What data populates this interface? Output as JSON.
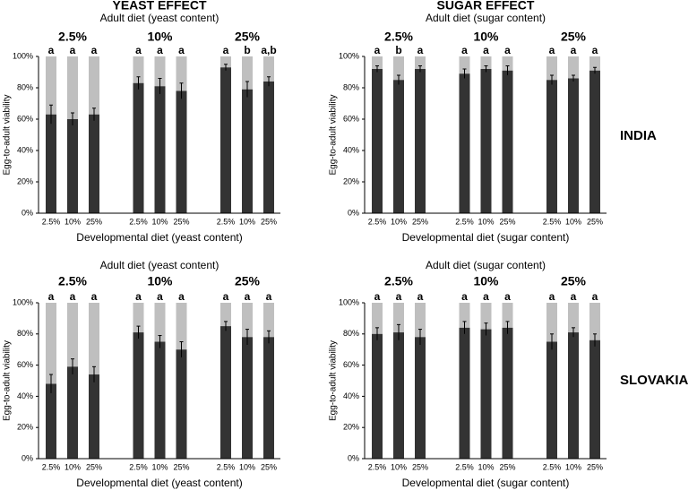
{
  "column_titles": [
    "YEAST EFFECT",
    "SUGAR EFFECT"
  ],
  "row_labels": [
    "INDIA",
    "SLOVAKIA"
  ],
  "chart_data": [
    {
      "type": "bar",
      "subtitle": "Adult diet (yeast content)",
      "groups": [
        "2.5%",
        "10%",
        "25%"
      ],
      "categories": [
        "2.5%",
        "10%",
        "25%",
        "2.5%",
        "10%",
        "25%",
        "2.5%",
        "10%",
        "25%"
      ],
      "values": [
        63,
        60,
        63,
        83,
        81,
        78,
        93,
        79,
        84
      ],
      "errors": [
        6,
        4,
        4,
        4,
        5,
        5,
        2,
        5,
        3
      ],
      "annotations": [
        "a",
        "a",
        "a",
        "a",
        "a",
        "a",
        "a",
        "b",
        "a,b"
      ],
      "x_label": "Developmental diet (yeast content)",
      "y_label": "Egg-to-adult viability",
      "color": "#333333",
      "background_color": "#bfbfbf",
      "ylim": [
        0,
        100
      ],
      "yticks": [
        {
          "value": 0,
          "label": "0%"
        },
        {
          "value": 20,
          "label": "20%"
        },
        {
          "value": 40,
          "label": "40%"
        },
        {
          "value": 60,
          "label": "60%"
        },
        {
          "value": 80,
          "label": "80%"
        },
        {
          "value": 100,
          "label": "100%"
        }
      ]
    },
    {
      "type": "bar",
      "subtitle": "Adult diet (sugar content)",
      "groups": [
        "2.5%",
        "10%",
        "25%"
      ],
      "categories": [
        "2.5%",
        "10%",
        "25%",
        "2.5%",
        "10%",
        "25%",
        "2.5%",
        "10%",
        "25%"
      ],
      "values": [
        92,
        85,
        92,
        89,
        92,
        91,
        85,
        86,
        91
      ],
      "errors": [
        2,
        3,
        2,
        3,
        2,
        3,
        3,
        2,
        2
      ],
      "annotations": [
        "a",
        "b",
        "a",
        "a",
        "a",
        "a",
        "a",
        "a",
        "a"
      ],
      "x_label": "Developmental diet (sugar content)",
      "y_label": "Egg-to-adult viability",
      "color": "#333333",
      "background_color": "#bfbfbf",
      "ylim": [
        0,
        100
      ],
      "yticks": [
        {
          "value": 0,
          "label": "0%"
        },
        {
          "value": 20,
          "label": "20%"
        },
        {
          "value": 40,
          "label": "40%"
        },
        {
          "value": 60,
          "label": "60%"
        },
        {
          "value": 80,
          "label": "80%"
        },
        {
          "value": 100,
          "label": "100%"
        }
      ]
    },
    {
      "type": "bar",
      "subtitle": "Adult diet (yeast content)",
      "groups": [
        "2.5%",
        "10%",
        "25%"
      ],
      "categories": [
        "2.5%",
        "10%",
        "25%",
        "2.5%",
        "10%",
        "25%",
        "2.5%",
        "10%",
        "25%"
      ],
      "values": [
        48,
        59,
        54,
        81,
        75,
        70,
        85,
        78,
        78
      ],
      "errors": [
        6,
        5,
        5,
        4,
        4,
        5,
        3,
        5,
        4
      ],
      "annotations": [
        "a",
        "a",
        "a",
        "a",
        "a",
        "a",
        "a",
        "a",
        "a"
      ],
      "x_label": "Developmental diet (yeast content)",
      "y_label": "Egg-to-adult viability",
      "color": "#333333",
      "background_color": "#bfbfbf",
      "ylim": [
        0,
        100
      ],
      "yticks": [
        {
          "value": 0,
          "label": "0%"
        },
        {
          "value": 20,
          "label": "20%"
        },
        {
          "value": 40,
          "label": "40%"
        },
        {
          "value": 60,
          "label": "60%"
        },
        {
          "value": 80,
          "label": "80%"
        },
        {
          "value": 100,
          "label": "100%"
        }
      ]
    },
    {
      "type": "bar",
      "subtitle": "Adult diet (sugar content)",
      "groups": [
        "2.5%",
        "10%",
        "25%"
      ],
      "categories": [
        "2.5%",
        "10%",
        "25%",
        "2.5%",
        "10%",
        "25%",
        "2.5%",
        "10%",
        "25%"
      ],
      "values": [
        80,
        81,
        78,
        84,
        83,
        84,
        75,
        81,
        76
      ],
      "errors": [
        4,
        5,
        5,
        4,
        4,
        4,
        5,
        3,
        4
      ],
      "annotations": [
        "a",
        "a",
        "a",
        "a",
        "a",
        "a",
        "a",
        "a",
        "a"
      ],
      "x_label": "Developmental diet (sugar content)",
      "y_label": "Egg-to-adult viability",
      "color": "#333333",
      "background_color": "#bfbfbf",
      "ylim": [
        0,
        100
      ],
      "yticks": [
        {
          "value": 0,
          "label": "0%"
        },
        {
          "value": 20,
          "label": "20%"
        },
        {
          "value": 40,
          "label": "40%"
        },
        {
          "value": 60,
          "label": "60%"
        },
        {
          "value": 80,
          "label": "80%"
        },
        {
          "value": 100,
          "label": "100%"
        }
      ]
    }
  ]
}
